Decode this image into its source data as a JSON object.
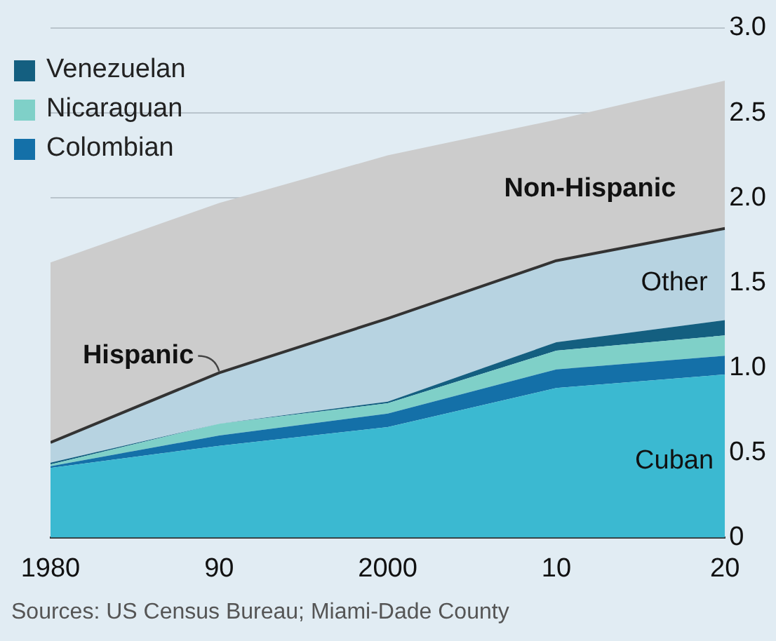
{
  "chart_data": {
    "type": "area",
    "stacked": true,
    "x": [
      1980,
      1990,
      2000,
      2010,
      2020
    ],
    "xlim": [
      1980,
      2020
    ],
    "xticks": [
      1980,
      {
        "value": 1990,
        "label": "90"
      },
      2000,
      {
        "value": 2010,
        "label": "10"
      },
      {
        "value": 2020,
        "label": "20"
      }
    ],
    "ylim": [
      0,
      3
    ],
    "yticks": [
      0,
      0.5,
      {
        "value": 1,
        "label": "1.0"
      },
      1.5,
      {
        "value": 2,
        "label": "2.0"
      },
      2.5,
      {
        "value": 3,
        "label": "3.0"
      }
    ],
    "grid": "y",
    "legend": "top left",
    "series": [
      {
        "color": "#3bb9d1",
        "values": [
          0.41,
          0.54,
          0.65,
          0.88,
          0.96
        ]
      },
      {
        "name": "Colombian",
        "color": "#1470a8",
        "values": [
          0.01,
          0.06,
          0.08,
          0.11,
          0.11
        ]
      },
      {
        "name": "Nicaraguan",
        "color": "#7fd0c8",
        "values": [
          0.01,
          0.07,
          0.06,
          0.11,
          0.12
        ]
      },
      {
        "name": "Venezuelan",
        "color": "#145f80",
        "values": [
          0.01,
          0.0,
          0.01,
          0.05,
          0.09
        ]
      },
      {
        "color": "#b7d3e1",
        "values": [
          0.12,
          0.3,
          0.49,
          0.48,
          0.54
        ]
      },
      {
        "color": "#cccccc",
        "values": [
          1.06,
          1.0,
          0.96,
          0.83,
          0.87
        ]
      }
    ],
    "annotations": [
      "Cuban",
      "Other",
      "Non-Hispanic",
      {
        "text": "Hispanic",
        "x": 1990,
        "y": 0.97
      },
      "Sources: US Census Bureau; Miami-Dade County"
    ]
  }
}
